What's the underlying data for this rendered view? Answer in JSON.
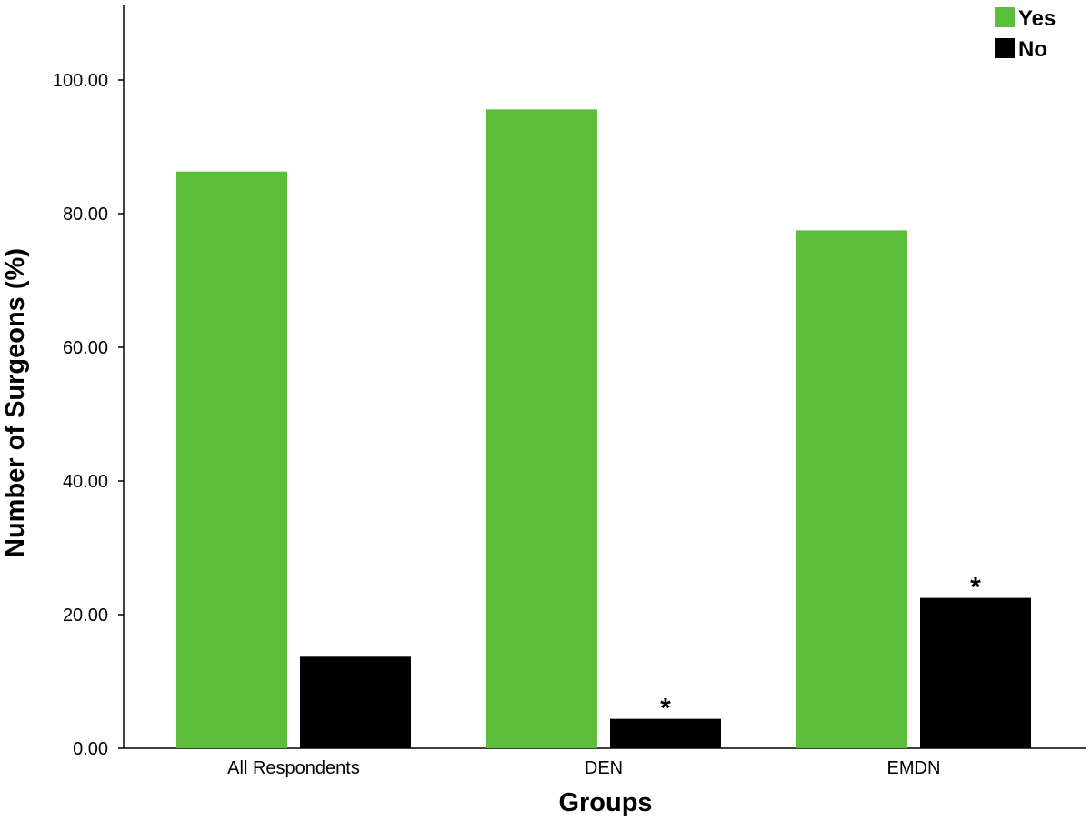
{
  "chart_data": {
    "type": "bar",
    "title": "",
    "xlabel": "Groups",
    "ylabel": "Number of Surgeons (%)",
    "categories": [
      "All Respondents",
      "DEN",
      "EMDN"
    ],
    "series": [
      {
        "name": "Yes",
        "color": "#5DBE3B",
        "values": [
          86.3,
          95.6,
          77.5
        ]
      },
      {
        "name": "No",
        "color": "#000000",
        "values": [
          13.7,
          4.4,
          22.5
        ]
      }
    ],
    "ylim": [
      0,
      110
    ],
    "yticks": [
      0,
      20,
      40,
      60,
      80,
      100
    ],
    "ytick_labels": [
      "0.00",
      "20.00",
      "40.00",
      "60.00",
      "80.00",
      "100.00"
    ],
    "annotations": [
      {
        "series": "No",
        "category": "DEN",
        "text": "*"
      },
      {
        "series": "No",
        "category": "EMDN",
        "text": "*"
      }
    ],
    "legend": {
      "position": "top-right"
    },
    "grid": false
  }
}
